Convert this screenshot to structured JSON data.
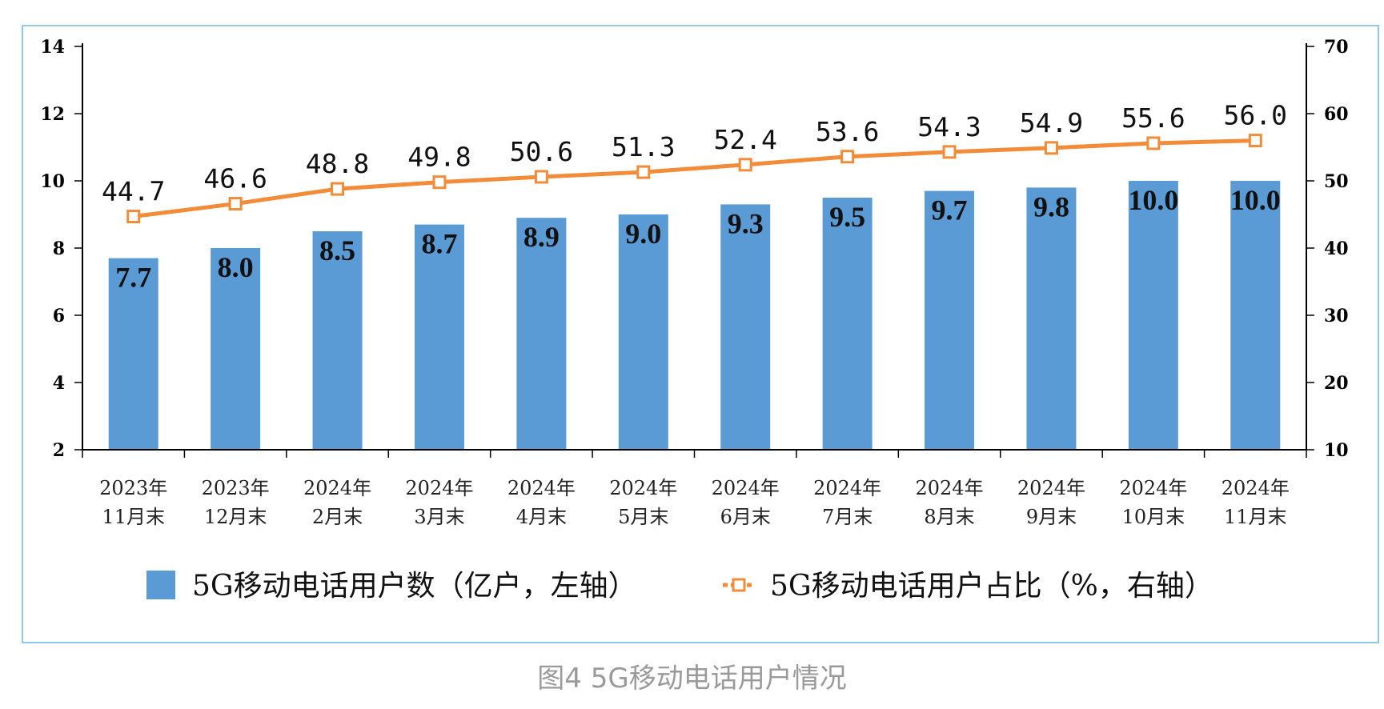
{
  "caption": "图4 5G移动电话用户情况",
  "chart_data": {
    "type": "bar",
    "categories": [
      [
        "2023年",
        "11月末"
      ],
      [
        "2023年",
        "12月末"
      ],
      [
        "2024年",
        "2月末"
      ],
      [
        "2024年",
        "3月末"
      ],
      [
        "2024年",
        "4月末"
      ],
      [
        "2024年",
        "5月末"
      ],
      [
        "2024年",
        "6月末"
      ],
      [
        "2024年",
        "7月末"
      ],
      [
        "2024年",
        "8月末"
      ],
      [
        "2024年",
        "9月末"
      ],
      [
        "2024年",
        "10月末"
      ],
      [
        "2024年",
        "11月末"
      ]
    ],
    "series": [
      {
        "name": "5G移动电话用户数（亿户，左轴）",
        "type": "bar",
        "axis": "left",
        "color": "#5b9bd5",
        "values": [
          7.7,
          8.0,
          8.5,
          8.7,
          8.9,
          9.0,
          9.3,
          9.5,
          9.7,
          9.8,
          10.0,
          10.0
        ],
        "labels": [
          "7.7",
          "8.0",
          "8.5",
          "8.7",
          "8.9",
          "9.0",
          "9.3",
          "9.5",
          "9.7",
          "9.8",
          "10.0",
          "10.0"
        ]
      },
      {
        "name": "5G移动电话用户占比（%，右轴）",
        "type": "line",
        "axis": "right",
        "color": "#f28c38",
        "values": [
          44.7,
          46.6,
          48.8,
          49.8,
          50.6,
          51.3,
          52.4,
          53.6,
          54.3,
          54.9,
          55.6,
          56.0
        ],
        "labels": [
          "44.7",
          "46.6",
          "48.8",
          "49.8",
          "50.6",
          "51.3",
          "52.4",
          "53.6",
          "54.3",
          "54.9",
          "55.6",
          "56.0"
        ]
      }
    ],
    "y_left": {
      "range": [
        2,
        14
      ],
      "ticks": [
        "2",
        "4",
        "6",
        "8",
        "10",
        "12",
        "14"
      ]
    },
    "y_right": {
      "range": [
        10,
        70
      ],
      "ticks": [
        "10",
        "20",
        "30",
        "40",
        "50",
        "60",
        "70"
      ]
    },
    "grid": false,
    "legend": "bottom"
  }
}
